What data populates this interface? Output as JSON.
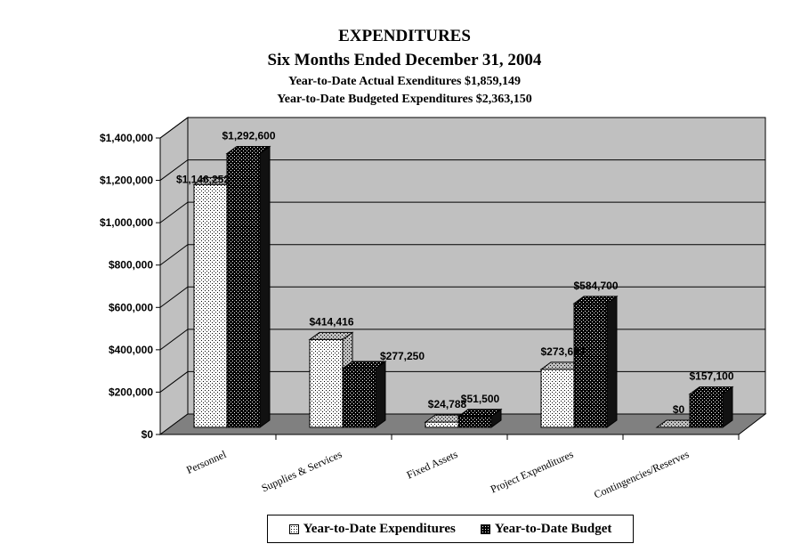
{
  "title": "EXPENDITURES",
  "subtitle": "Six Months Ended December 31, 2004",
  "actual_line": "Year-to-Date Actual Exenditures $1,859,149",
  "budget_line": "Year-to-Date Budgeted Expenditures $2,363,150",
  "colors": {
    "wall": "#c0c0c0",
    "floor": "#808080",
    "actual": "#ffffff",
    "budget": "#000000"
  },
  "chart_data": {
    "type": "bar",
    "title": "EXPENDITURES",
    "categories": [
      "Personnel",
      "Supplies & Services",
      "Fixed Assets",
      "Project Expenditures",
      "Contingencies/Reserves"
    ],
    "series": [
      {
        "name": "Year-to-Date Expenditures",
        "values": [
          1146252,
          414416,
          24788,
          273693,
          0
        ],
        "labels": [
          "$1,146,252",
          "$414,416",
          "$24,788",
          "$273,693",
          "$0"
        ]
      },
      {
        "name": "Year-to-Date Budget",
        "values": [
          1292600,
          277250,
          51500,
          584700,
          157100
        ],
        "labels": [
          "$1,292,600",
          "$277,250",
          "$51,500",
          "$584,700",
          "$157,100"
        ]
      }
    ],
    "ylim": [
      0,
      1400000
    ],
    "yticks": [
      "$0",
      "$200,000",
      "$400,000",
      "$600,000",
      "$800,000",
      "$1,000,000",
      "$1,200,000",
      "$1,400,000"
    ],
    "grid": true,
    "legend_position": "bottom",
    "style": "3d-clustered-column"
  }
}
